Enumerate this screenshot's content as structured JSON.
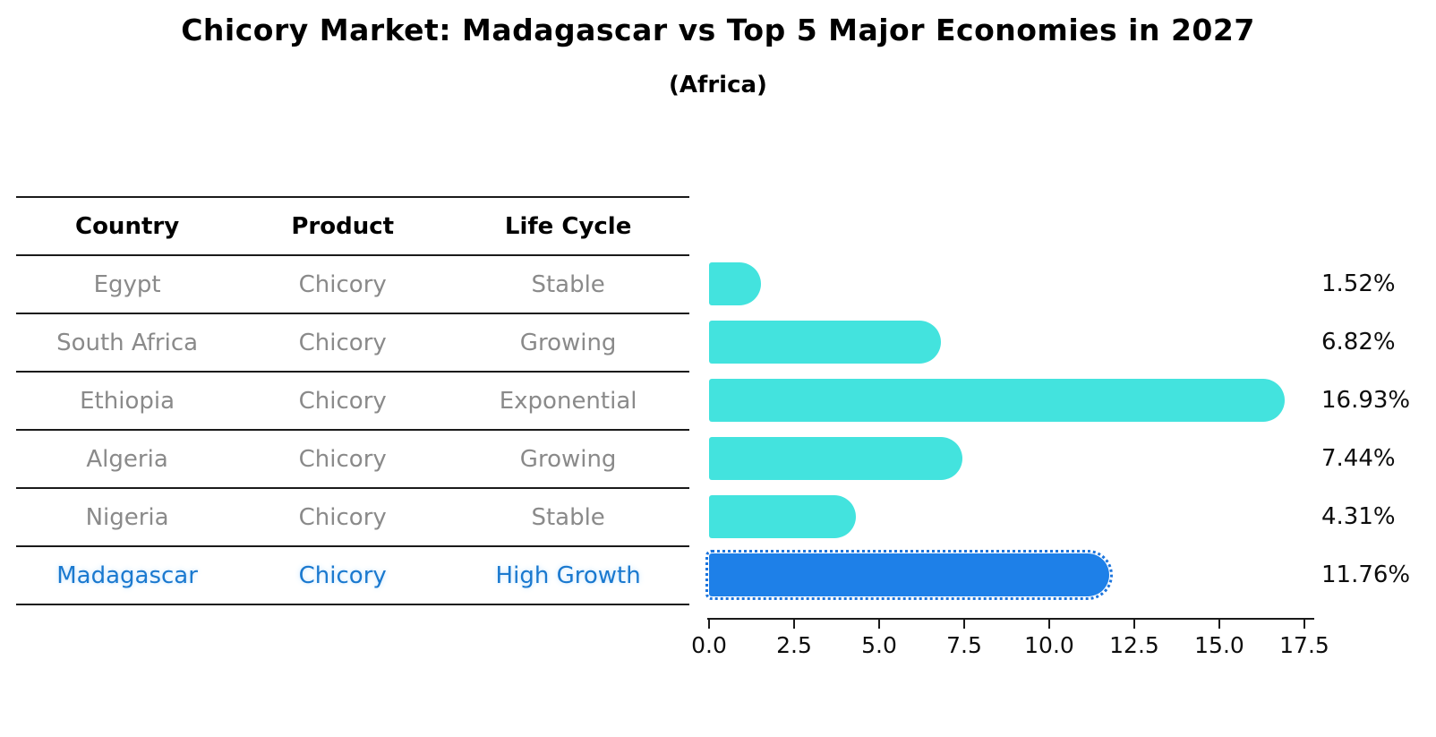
{
  "title": "Chicory Market: Madagascar vs Top 5 Major Economies in 2027",
  "subtitle": "(Africa)",
  "table": {
    "headers": [
      "Country",
      "Product",
      "Life Cycle"
    ],
    "rows": [
      {
        "country": "Egypt",
        "product": "Chicory",
        "life_cycle": "Stable",
        "highlight": false
      },
      {
        "country": "South Africa",
        "product": "Chicory",
        "life_cycle": "Growing",
        "highlight": false
      },
      {
        "country": "Ethiopia",
        "product": "Chicory",
        "life_cycle": "Exponential",
        "highlight": false
      },
      {
        "country": "Algeria",
        "product": "Chicory",
        "life_cycle": "Growing",
        "highlight": false
      },
      {
        "country": "Nigeria",
        "product": "Chicory",
        "life_cycle": "Stable",
        "highlight": false
      },
      {
        "country": "Madagascar",
        "product": "Chicory",
        "life_cycle": "High Growth",
        "highlight": true
      }
    ]
  },
  "chart_data": {
    "type": "bar",
    "orientation": "horizontal",
    "categories": [
      "Egypt",
      "South Africa",
      "Ethiopia",
      "Algeria",
      "Nigeria",
      "Madagascar"
    ],
    "values": [
      1.52,
      6.82,
      16.93,
      7.44,
      4.31,
      11.76
    ],
    "value_labels": [
      "1.52%",
      "6.82%",
      "16.93%",
      "7.44%",
      "4.31%",
      "11.76%"
    ],
    "highlight_index": 5,
    "xlim": [
      0,
      17.5
    ],
    "x_ticks": [
      "0.0",
      "2.5",
      "5.0",
      "7.5",
      "10.0",
      "12.5",
      "15.0",
      "17.5"
    ],
    "xlabel": "",
    "ylabel": "",
    "grid": "off",
    "legend": "none",
    "colors": {
      "bar_default": "#43e3de",
      "bar_highlight": "#1e80e8",
      "highlight_text": "#1a79cf",
      "axis": "#1a1a1a"
    }
  }
}
